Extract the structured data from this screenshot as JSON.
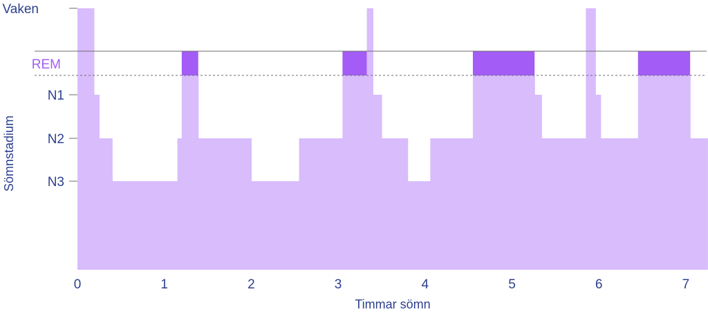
{
  "chart_data": {
    "type": "area",
    "xlabel": "Timmar sömn",
    "ylabel": "Sömnstadium",
    "xlim": [
      0,
      7.25
    ],
    "x_ticks": [
      "0",
      "1",
      "2",
      "3",
      "4",
      "5",
      "6",
      "7"
    ],
    "stages": [
      "Vaken",
      "REM",
      "N1",
      "N2",
      "N3"
    ],
    "colors": {
      "fill": "#d8bcfc",
      "rem": "#a35cf5",
      "text": "#2d3f8f",
      "rem_text": "#a45cf5",
      "line": "#6b6b6b"
    },
    "segments": [
      {
        "start": 0.0,
        "end": 0.19,
        "stage": "Vaken"
      },
      {
        "start": 0.19,
        "end": 0.25,
        "stage": "N1"
      },
      {
        "start": 0.25,
        "end": 0.4,
        "stage": "N2"
      },
      {
        "start": 0.4,
        "end": 1.15,
        "stage": "N3"
      },
      {
        "start": 1.15,
        "end": 1.2,
        "stage": "N2"
      },
      {
        "start": 1.2,
        "end": 1.39,
        "stage": "REM"
      },
      {
        "start": 1.39,
        "end": 2.0,
        "stage": "N2"
      },
      {
        "start": 2.0,
        "end": 2.55,
        "stage": "N3"
      },
      {
        "start": 2.55,
        "end": 3.05,
        "stage": "N2"
      },
      {
        "start": 3.05,
        "end": 3.33,
        "stage": "REM"
      },
      {
        "start": 3.33,
        "end": 3.4,
        "stage": "Vaken"
      },
      {
        "start": 3.4,
        "end": 3.5,
        "stage": "N1"
      },
      {
        "start": 3.5,
        "end": 3.8,
        "stage": "N2"
      },
      {
        "start": 3.8,
        "end": 4.06,
        "stage": "N3"
      },
      {
        "start": 4.06,
        "end": 4.55,
        "stage": "N2"
      },
      {
        "start": 4.55,
        "end": 5.26,
        "stage": "REM"
      },
      {
        "start": 5.26,
        "end": 5.34,
        "stage": "N1"
      },
      {
        "start": 5.34,
        "end": 5.85,
        "stage": "N2"
      },
      {
        "start": 5.85,
        "end": 5.96,
        "stage": "Vaken"
      },
      {
        "start": 5.96,
        "end": 6.02,
        "stage": "N1"
      },
      {
        "start": 6.02,
        "end": 6.45,
        "stage": "N2"
      },
      {
        "start": 6.45,
        "end": 7.05,
        "stage": "REM"
      },
      {
        "start": 7.05,
        "end": 7.25,
        "stage": "N2"
      }
    ]
  }
}
